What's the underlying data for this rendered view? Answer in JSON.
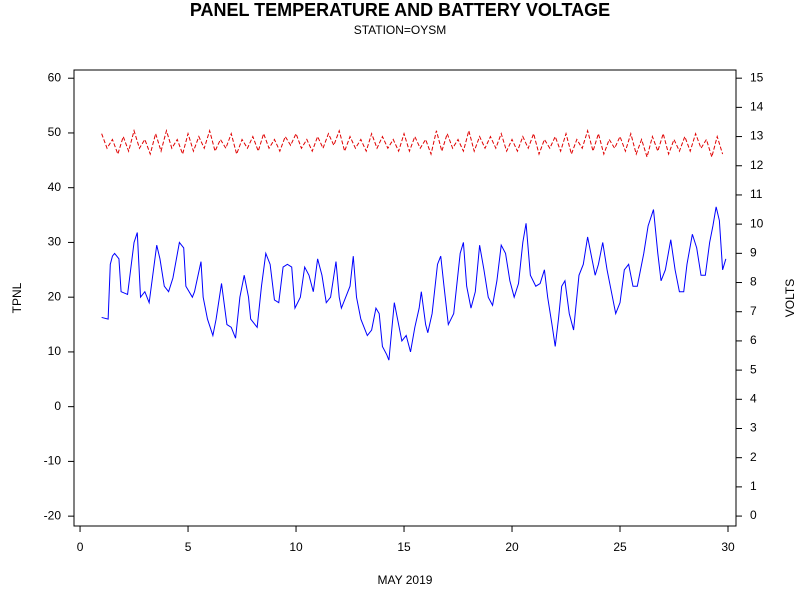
{
  "chart_data": {
    "type": "line",
    "title": "PANEL TEMPERATURE AND BATTERY VOLTAGE",
    "subtitle": "STATION=OYSM",
    "xlabel": "MAY 2019",
    "ylabel": "TPNL",
    "y2label": "VOLTS",
    "xlim": [
      -0.28,
      30.37
    ],
    "xticks": [
      0,
      5,
      10,
      15,
      20,
      25,
      30
    ],
    "ylim": [
      -21.8,
      61.5
    ],
    "yticks": [
      -20,
      -10,
      0,
      10,
      20,
      30,
      40,
      50,
      60
    ],
    "y2lim": [
      -0.34,
      15.28
    ],
    "y2ticks": [
      0,
      1,
      2,
      3,
      4,
      5,
      6,
      7,
      8,
      9,
      10,
      11,
      12,
      13,
      14,
      15
    ],
    "series": [
      {
        "color": "#0000ff",
        "axis": "y",
        "x": [
          1.0,
          1.3,
          1.4,
          1.5,
          1.6,
          1.8,
          1.9,
          2.2,
          2.5,
          2.65,
          2.8,
          3.0,
          3.2,
          3.55,
          3.7,
          3.9,
          4.1,
          4.3,
          4.6,
          4.8,
          4.9,
          5.2,
          5.3,
          5.6,
          5.7,
          5.9,
          6.15,
          6.3,
          6.55,
          6.8,
          7.0,
          7.2,
          7.4,
          7.6,
          7.8,
          7.9,
          8.2,
          8.4,
          8.6,
          8.8,
          9.0,
          9.2,
          9.4,
          9.6,
          9.8,
          9.95,
          10.2,
          10.4,
          10.6,
          10.8,
          11.0,
          11.2,
          11.4,
          11.6,
          11.85,
          12.0,
          12.1,
          12.3,
          12.5,
          12.65,
          12.8,
          13.0,
          13.3,
          13.5,
          13.7,
          13.85,
          14.0,
          14.2,
          14.3,
          14.55,
          14.7,
          14.9,
          15.1,
          15.3,
          15.5,
          15.7,
          15.8,
          16.0,
          16.1,
          16.3,
          16.55,
          16.7,
          16.85,
          17.05,
          17.3,
          17.6,
          17.75,
          17.9,
          18.1,
          18.3,
          18.5,
          18.7,
          18.9,
          19.1,
          19.3,
          19.5,
          19.7,
          19.9,
          20.1,
          20.3,
          20.5,
          20.65,
          20.85,
          21.1,
          21.3,
          21.5,
          21.65,
          21.85,
          22.0,
          22.15,
          22.3,
          22.45,
          22.65,
          22.85,
          23.1,
          23.3,
          23.5,
          23.65,
          23.85,
          24.0,
          24.2,
          24.4,
          24.6,
          24.8,
          25.0,
          25.2,
          25.4,
          25.6,
          25.8,
          26.1,
          26.3,
          26.55,
          26.75,
          26.9,
          27.1,
          27.35,
          27.55,
          27.75,
          27.95,
          28.1,
          28.35,
          28.55,
          28.75,
          28.95,
          29.15,
          29.3,
          29.45,
          29.6,
          29.75,
          29.9
        ],
        "values": [
          16.3,
          16,
          26,
          27.5,
          28,
          27,
          21,
          20.5,
          30,
          31.8,
          20,
          21,
          19,
          29.5,
          27,
          22,
          21,
          23.5,
          30,
          29,
          22,
          20,
          21,
          26.5,
          20,
          16,
          13,
          16,
          22.5,
          15,
          14.5,
          12.5,
          20,
          24,
          20,
          16,
          14.5,
          22,
          28,
          26,
          19.5,
          19,
          25.5,
          26,
          25.5,
          18,
          20,
          25.5,
          24,
          21,
          27,
          24,
          19,
          20,
          26.5,
          20,
          18,
          20,
          22,
          27.5,
          20,
          16,
          13,
          14,
          18,
          17,
          11,
          9.5,
          8.5,
          19,
          16,
          12,
          13,
          10,
          14.5,
          18,
          21,
          15,
          13.5,
          17,
          26,
          27.5,
          22,
          15,
          17,
          28,
          30,
          22,
          18,
          21,
          29.5,
          25,
          20,
          18.5,
          23,
          29.5,
          28,
          23,
          20,
          22.5,
          30,
          33.5,
          24,
          22,
          22.5,
          25,
          20,
          15,
          11,
          16,
          22,
          23,
          17,
          14,
          24,
          26,
          31,
          28,
          24,
          26,
          30,
          25,
          21,
          17,
          19,
          25,
          26,
          22,
          22,
          28,
          33,
          36,
          28,
          23,
          25,
          30.5,
          25,
          21,
          21,
          26,
          31.5,
          29,
          24,
          24,
          30,
          33,
          36.5,
          34,
          25,
          27
        ]
      },
      {
        "color": "#e00000",
        "axis": "y2",
        "x": [
          1,
          1.25,
          1.5,
          1.75,
          2,
          2.25,
          2.5,
          2.75,
          3,
          3.25,
          3.5,
          3.75,
          4,
          4.25,
          4.5,
          4.75,
          5,
          5.25,
          5.5,
          5.75,
          6,
          6.25,
          6.5,
          6.75,
          7,
          7.25,
          7.5,
          7.75,
          8,
          8.25,
          8.5,
          8.75,
          9,
          9.25,
          9.5,
          9.75,
          10,
          10.25,
          10.5,
          10.75,
          11,
          11.25,
          11.5,
          11.75,
          12,
          12.25,
          12.5,
          12.75,
          13,
          13.25,
          13.5,
          13.75,
          14,
          14.25,
          14.5,
          14.75,
          15,
          15.25,
          15.5,
          15.75,
          16,
          16.25,
          16.5,
          16.75,
          17,
          17.25,
          17.5,
          17.75,
          18,
          18.25,
          18.5,
          18.75,
          19,
          19.25,
          19.5,
          19.75,
          20,
          20.25,
          20.5,
          20.75,
          21,
          21.25,
          21.5,
          21.75,
          22,
          22.25,
          22.5,
          22.75,
          23,
          23.25,
          23.5,
          23.75,
          24,
          24.25,
          24.5,
          24.75,
          25,
          25.25,
          25.5,
          25.75,
          26,
          26.25,
          26.5,
          26.75,
          27,
          27.25,
          27.5,
          27.75,
          28,
          28.25,
          28.5,
          28.75,
          29,
          29.25,
          29.5,
          29.75
        ],
        "values": [
          13.1,
          12.6,
          12.9,
          12.4,
          13.0,
          12.5,
          13.2,
          12.6,
          12.9,
          12.4,
          13.1,
          12.5,
          13.2,
          12.6,
          12.9,
          12.4,
          13.1,
          12.5,
          13.0,
          12.6,
          13.2,
          12.5,
          12.9,
          12.6,
          13.1,
          12.4,
          12.9,
          12.6,
          13.0,
          12.5,
          13.1,
          12.6,
          12.9,
          12.5,
          13.0,
          12.7,
          13.1,
          12.6,
          12.9,
          12.5,
          13.0,
          12.6,
          13.1,
          12.7,
          13.2,
          12.5,
          13.0,
          12.6,
          12.9,
          12.5,
          13.1,
          12.6,
          13.0,
          12.6,
          12.9,
          12.5,
          13.1,
          12.5,
          13.0,
          12.6,
          12.9,
          12.4,
          13.2,
          12.5,
          13.1,
          12.6,
          12.9,
          12.5,
          13.2,
          12.5,
          13.0,
          12.6,
          13.0,
          12.6,
          13.1,
          12.5,
          12.9,
          12.5,
          13.0,
          12.6,
          13.1,
          12.4,
          12.9,
          12.6,
          13.0,
          12.5,
          13.1,
          12.4,
          12.9,
          12.6,
          13.2,
          12.5,
          13.1,
          12.4,
          12.9,
          12.6,
          13.0,
          12.5,
          13.1,
          12.4,
          12.9,
          12.3,
          13.0,
          12.5,
          13.1,
          12.4,
          12.9,
          12.5,
          13.0,
          12.5,
          13.1,
          12.6,
          12.9,
          12.3,
          13.0,
          12.4
        ]
      }
    ]
  }
}
